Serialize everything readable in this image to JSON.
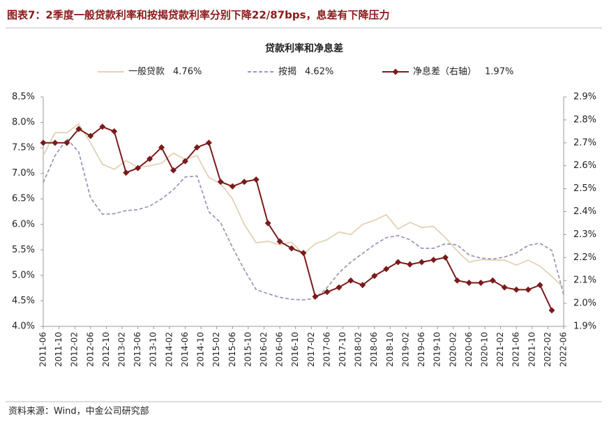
{
  "header": {
    "title": "图表7：2季度一般贷款利率和按揭贷款利率分别下降22/87bps，息差有下降压力"
  },
  "footer": {
    "source": "资料来源：Wind，中金公司研究部"
  },
  "chart_data": {
    "type": "line",
    "title": "贷款利率和净息差",
    "x": [
      "2011-06",
      "2011-09",
      "2011-12",
      "2012-03",
      "2012-06",
      "2012-09",
      "2012-12",
      "2013-03",
      "2013-06",
      "2013-09",
      "2013-12",
      "2014-03",
      "2014-06",
      "2014-09",
      "2014-12",
      "2015-03",
      "2015-06",
      "2015-09",
      "2015-12",
      "2016-03",
      "2016-06",
      "2016-09",
      "2016-12",
      "2017-03",
      "2017-06",
      "2017-09",
      "2017-12",
      "2018-03",
      "2018-06",
      "2018-09",
      "2018-12",
      "2019-03",
      "2019-06",
      "2019-09",
      "2019-12",
      "2020-03",
      "2020-06",
      "2020-09",
      "2020-12",
      "2021-03",
      "2021-06",
      "2021-09",
      "2021-12",
      "2022-03",
      "2022-06"
    ],
    "xticks": [
      "2011-06",
      "2011-10",
      "2012-02",
      "2012-06",
      "2012-10",
      "2013-02",
      "2013-06",
      "2013-10",
      "2014-02",
      "2014-06",
      "2014-10",
      "2015-02",
      "2015-06",
      "2015-10",
      "2016-02",
      "2016-06",
      "2016-10",
      "2017-02",
      "2017-06",
      "2017-10",
      "2018-02",
      "2018-06",
      "2018-10",
      "2019-02",
      "2019-06",
      "2019-10",
      "2020-02",
      "2020-06",
      "2020-10",
      "2021-02",
      "2021-06",
      "2021-10",
      "2022-02",
      "2022-06"
    ],
    "ylim": [
      4.0,
      8.5
    ],
    "yticks": [
      {
        "value": 4.0,
        "label": "4.0%"
      },
      {
        "value": 4.5,
        "label": "4.5%"
      },
      {
        "value": 5.0,
        "label": "5.0%"
      },
      {
        "value": 5.5,
        "label": "5.5%"
      },
      {
        "value": 6.0,
        "label": "6.0%"
      },
      {
        "value": 6.5,
        "label": "6.5%"
      },
      {
        "value": 7.0,
        "label": "7.0%"
      },
      {
        "value": 7.5,
        "label": "7.5%"
      },
      {
        "value": 8.0,
        "label": "8.0%"
      },
      {
        "value": 8.5,
        "label": "8.5%"
      }
    ],
    "y2lim": [
      1.9,
      2.9
    ],
    "y2ticks": [
      {
        "value": 1.9,
        "label": "1.9%"
      },
      {
        "value": 2.0,
        "label": "2.0%"
      },
      {
        "value": 2.1,
        "label": "2.1%"
      },
      {
        "value": 2.2,
        "label": "2.2%"
      },
      {
        "value": 2.3,
        "label": "2.3%"
      },
      {
        "value": 2.4,
        "label": "2.4%"
      },
      {
        "value": 2.5,
        "label": "2.5%"
      },
      {
        "value": 2.6,
        "label": "2.6%"
      },
      {
        "value": 2.7,
        "label": "2.7%"
      },
      {
        "value": 2.8,
        "label": "2.8%"
      },
      {
        "value": 2.9,
        "label": "2.9%"
      }
    ],
    "series": [
      {
        "name": "一般贷款",
        "last_label": "4.76%",
        "color": "#e2d2b6",
        "style": "solid",
        "values": [
          7.35,
          7.8,
          7.8,
          7.97,
          7.6,
          7.18,
          7.08,
          7.25,
          7.12,
          7.15,
          7.2,
          7.4,
          7.27,
          7.35,
          6.92,
          6.8,
          6.5,
          6.0,
          5.64,
          5.67,
          5.6,
          5.65,
          5.42,
          5.62,
          5.7,
          5.85,
          5.8,
          6.0,
          6.08,
          6.19,
          5.91,
          6.04,
          5.94,
          5.96,
          5.74,
          5.48,
          5.26,
          5.31,
          5.3,
          5.3,
          5.2,
          5.3,
          5.18,
          4.98,
          4.76
        ]
      },
      {
        "name": "按揭",
        "last_label": "4.62%",
        "color": "#9a9ab8",
        "style": "dashed",
        "values": [
          6.82,
          7.35,
          7.68,
          7.42,
          6.52,
          6.2,
          6.21,
          6.27,
          6.29,
          6.36,
          6.5,
          6.68,
          6.93,
          6.95,
          6.25,
          6.03,
          5.55,
          5.11,
          4.72,
          4.64,
          4.57,
          4.53,
          4.52,
          4.55,
          4.76,
          5.05,
          5.26,
          5.43,
          5.6,
          5.74,
          5.78,
          5.7,
          5.53,
          5.53,
          5.62,
          5.6,
          5.4,
          5.34,
          5.32,
          5.36,
          5.44,
          5.59,
          5.63,
          5.49,
          4.62
        ]
      },
      {
        "name": "净息差（右轴）",
        "last_label": "1.97%",
        "color": "#7b1a1a",
        "style": "marker",
        "axis": "y2",
        "values": [
          2.7,
          2.7,
          2.7,
          2.76,
          2.73,
          2.77,
          2.75,
          2.57,
          2.59,
          2.63,
          2.68,
          2.58,
          2.62,
          2.68,
          2.7,
          2.53,
          2.51,
          2.53,
          2.54,
          2.35,
          2.27,
          2.24,
          2.22,
          2.03,
          2.05,
          2.07,
          2.1,
          2.08,
          2.12,
          2.15,
          2.18,
          2.17,
          2.18,
          2.19,
          2.2,
          2.1,
          2.09,
          2.09,
          2.1,
          2.07,
          2.06,
          2.06,
          2.08,
          1.97,
          null
        ]
      }
    ]
  }
}
